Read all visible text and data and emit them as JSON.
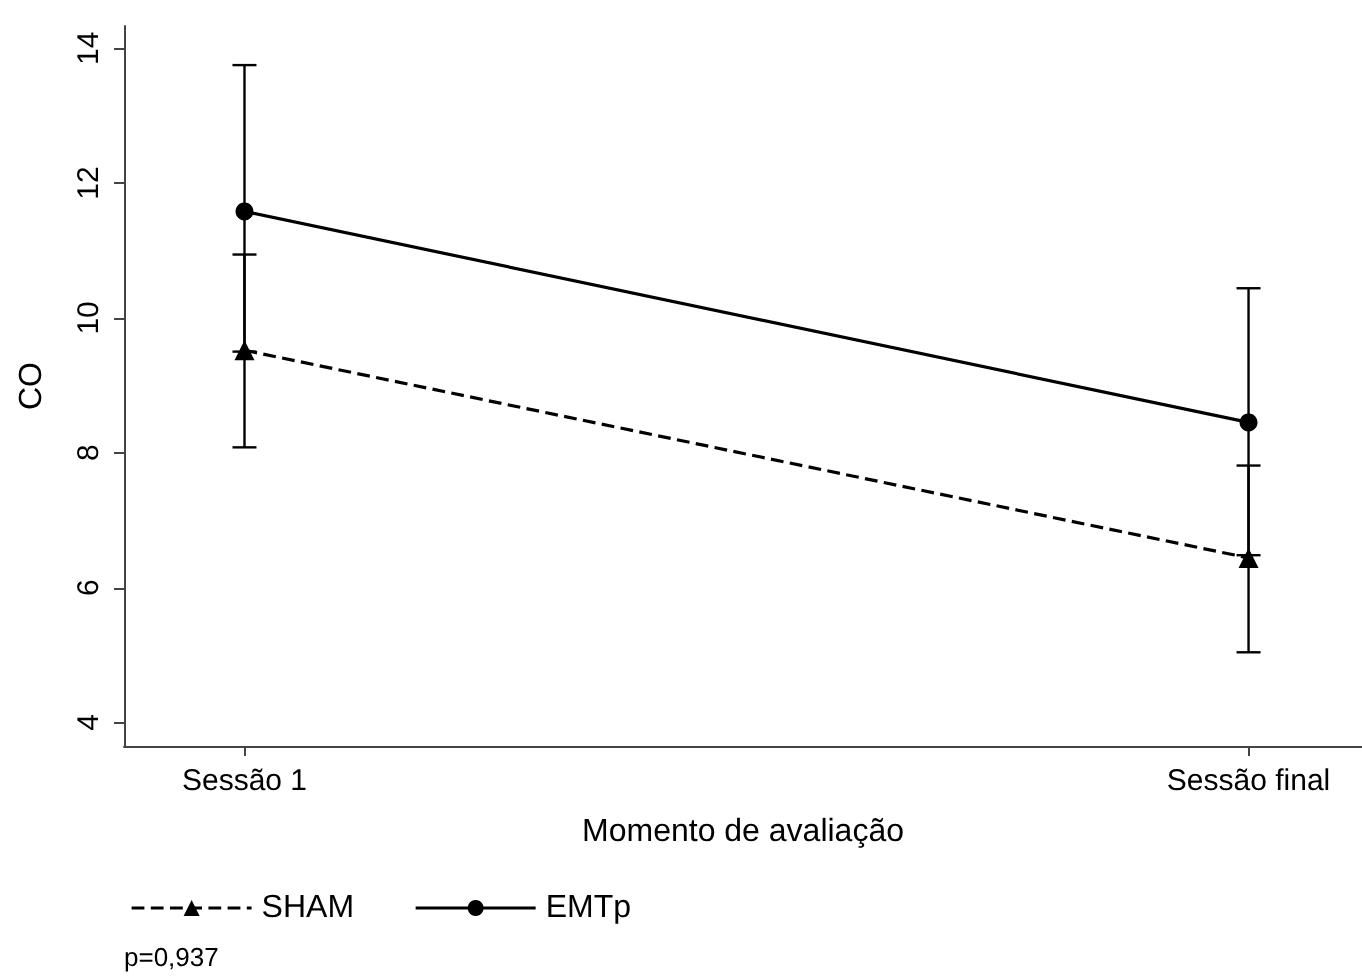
{
  "chart_data": {
    "type": "line",
    "xlabel": "Momento de avaliação",
    "ylabel": "CO",
    "categories": [
      "Sessão 1",
      "Sessão final"
    ],
    "series": [
      {
        "name": "SHAM",
        "color": "#000000",
        "values": [
          9.52,
          6.44
        ],
        "errors": [
          [
            8.08,
            10.94
          ],
          [
            5.04,
            7.81
          ]
        ],
        "marker": "triangle",
        "line_style": "dashed"
      },
      {
        "name": "EMTp",
        "color": "#000000",
        "values": [
          11.58,
          8.45
        ],
        "errors": [
          [
            9.5,
            13.75
          ],
          [
            6.48,
            10.44
          ]
        ],
        "marker": "circle",
        "line_style": "solid"
      }
    ],
    "ylim": [
      3.65,
      14.33
    ],
    "yticks": [
      4,
      6,
      8,
      10,
      12,
      14
    ],
    "grid": false,
    "legend": "bottom left",
    "annotations": [
      "p=0,937"
    ]
  }
}
